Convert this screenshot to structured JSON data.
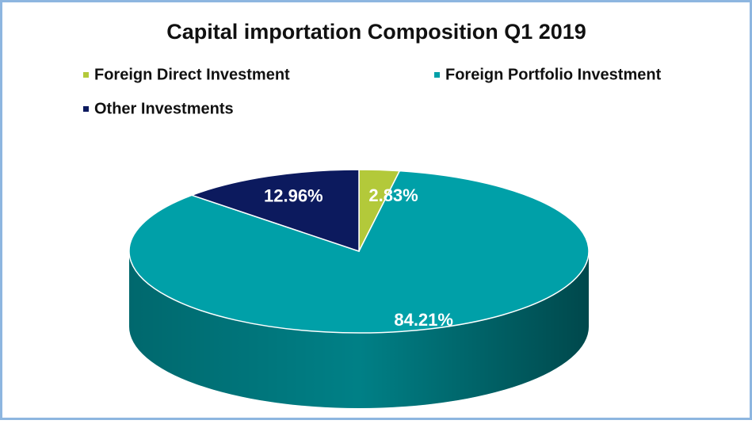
{
  "chart_data": {
    "type": "pie",
    "title": "Capital importation  Composition Q1 2019",
    "categories": [
      "Foreign Direct Investment",
      "Foreign Portfolio Investment",
      "Other Investments"
    ],
    "values": [
      2.83,
      84.21,
      12.96
    ],
    "value_labels": [
      "2.83%",
      "84.21%",
      "12.96%"
    ],
    "colors": [
      "#b3c93a",
      "#00a0a8",
      "#0c1a5e"
    ],
    "legend": "top"
  }
}
